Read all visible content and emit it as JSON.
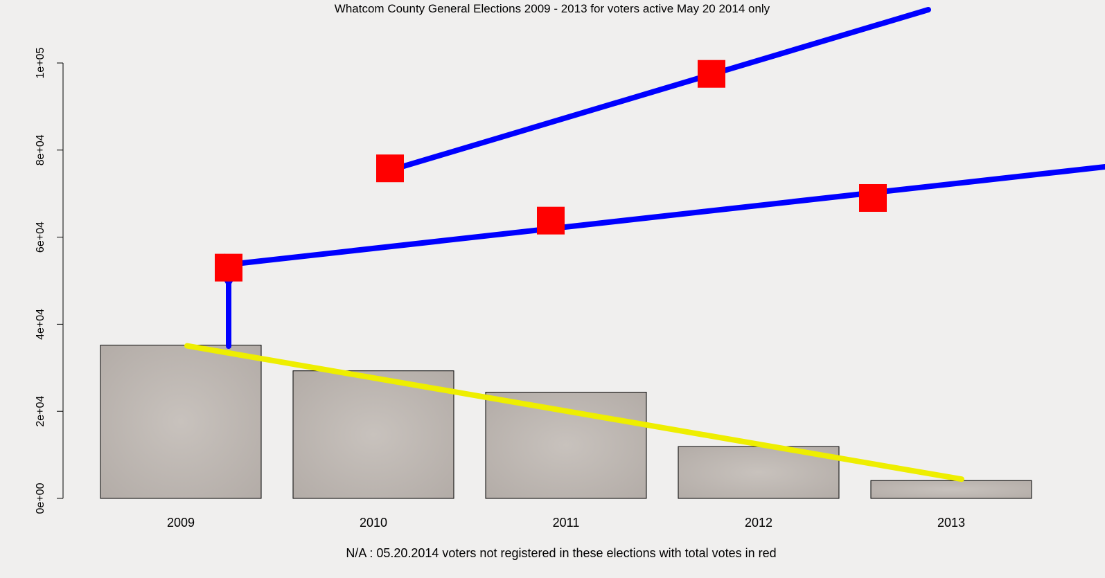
{
  "chart_data": {
    "type": "bar",
    "title": "Whatcom County General Elections 2009 - 2013 for voters active May 20 2014 only",
    "xlabel": "N/A : 05.20.2014 voters not registered in these elections with total votes in red",
    "ylabel": "",
    "categories": [
      "2009",
      "2010",
      "2011",
      "2012",
      "2013"
    ],
    "ylim": [
      0,
      100000
    ],
    "yticks": [
      0,
      20000,
      40000,
      60000,
      80000,
      100000
    ],
    "ytick_labels": [
      "0e+00",
      "2e+04",
      "4e+04",
      "6e+04",
      "8e+04",
      "1e+05"
    ],
    "series": [
      {
        "kind": "bar",
        "values": [
          35200,
          29300,
          24400,
          11900,
          4100
        ],
        "color": "#bdb7b2"
      },
      {
        "kind": "points",
        "values": [
          53000,
          75800,
          63800,
          97500,
          69000
        ],
        "color": "#ff0000"
      }
    ],
    "annotations": {
      "arrow_color": "#0000ff",
      "trend_color": "#eeee00",
      "trend_line": {
        "from": [
          "2009",
          35200
        ],
        "to": [
          "2013",
          4100
        ]
      }
    },
    "grid": false,
    "legend": "none"
  }
}
